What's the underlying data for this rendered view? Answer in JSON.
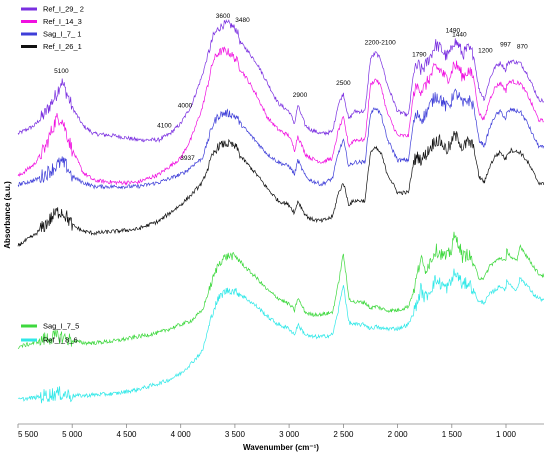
{
  "chart_data": {
    "type": "line",
    "title": "",
    "xlabel": "Wavenumber (cm⁻¹)",
    "ylabel": "Absorbance (a.u.)",
    "x_reversed": true,
    "xlim": [
      5500,
      650
    ],
    "x_ticks": [
      {
        "value": 5500,
        "label": "5 500"
      },
      {
        "value": 5000,
        "label": "5 000"
      },
      {
        "value": 4500,
        "label": "4 500"
      },
      {
        "value": 4000,
        "label": "4 000"
      },
      {
        "value": 3500,
        "label": "3 500"
      },
      {
        "value": 3000,
        "label": "3 000"
      },
      {
        "value": 2500,
        "label": "2 500"
      },
      {
        "value": 2000,
        "label": "2 000"
      },
      {
        "value": 1500,
        "label": "1 500"
      },
      {
        "value": 1000,
        "label": "1 000"
      }
    ],
    "grid": false,
    "legends": [
      {
        "placement": "top-left",
        "entries": [
          "Ref_I_29_ 2",
          "Ref_I_14_3",
          "Sag_I_7_ 1",
          "Ref_I_26_1"
        ]
      },
      {
        "placement": "bottom-left",
        "entries": [
          "Sag_I_7_5",
          "Ref_I_8_6"
        ]
      }
    ],
    "series": [
      {
        "name": "Ref_I_29_ 2",
        "color": "#7a2fe0",
        "x": [
          5500,
          5350,
          5250,
          5150,
          5100,
          5050,
          5000,
          4900,
          4800,
          4600,
          4400,
          4200,
          4100,
          4000,
          3900,
          3800,
          3700,
          3650,
          3600,
          3550,
          3480,
          3450,
          3400,
          3300,
          3200,
          3100,
          3000,
          2950,
          2920,
          2850,
          2800,
          2700,
          2600,
          2550,
          2500,
          2450,
          2400,
          2300,
          2250,
          2200,
          2150,
          2100,
          2000,
          1900,
          1850,
          1800,
          1790,
          1750,
          1700,
          1650,
          1600,
          1550,
          1500,
          1490,
          1440,
          1400,
          1350,
          1300,
          1250,
          1200,
          1150,
          1100,
          1050,
          1000,
          997,
          950,
          900,
          870,
          800,
          750,
          700,
          650
        ],
        "y": [
          0.705,
          0.725,
          0.755,
          0.8,
          0.835,
          0.805,
          0.77,
          0.725,
          0.705,
          0.7,
          0.69,
          0.69,
          0.705,
          0.73,
          0.775,
          0.85,
          0.945,
          0.965,
          0.975,
          0.975,
          0.96,
          0.93,
          0.915,
          0.88,
          0.83,
          0.78,
          0.76,
          0.73,
          0.775,
          0.725,
          0.715,
          0.705,
          0.71,
          0.775,
          0.805,
          0.74,
          0.76,
          0.76,
          0.89,
          0.905,
          0.885,
          0.83,
          0.76,
          0.75,
          0.86,
          0.875,
          0.86,
          0.87,
          0.895,
          0.925,
          0.915,
          0.895,
          0.91,
          0.935,
          0.925,
          0.9,
          0.915,
          0.9,
          0.815,
          0.79,
          0.84,
          0.87,
          0.88,
          0.86,
          0.875,
          0.885,
          0.88,
          0.88,
          0.85,
          0.82,
          0.79,
          0.785
        ]
      },
      {
        "name": "Ref_I_14_3",
        "color": "#f010e0",
        "x": [
          5500,
          5350,
          5250,
          5150,
          5100,
          5050,
          5000,
          4900,
          4800,
          4600,
          4400,
          4200,
          4100,
          4000,
          3900,
          3800,
          3700,
          3650,
          3600,
          3550,
          3480,
          3450,
          3400,
          3300,
          3200,
          3100,
          3000,
          2950,
          2920,
          2850,
          2800,
          2700,
          2600,
          2550,
          2500,
          2450,
          2400,
          2300,
          2250,
          2200,
          2150,
          2100,
          2000,
          1900,
          1850,
          1800,
          1790,
          1750,
          1700,
          1650,
          1600,
          1550,
          1500,
          1490,
          1440,
          1400,
          1350,
          1300,
          1250,
          1200,
          1150,
          1100,
          1050,
          1000,
          997,
          950,
          900,
          870,
          800,
          750,
          700,
          650
        ],
        "y": [
          0.6,
          0.63,
          0.67,
          0.74,
          0.745,
          0.705,
          0.665,
          0.61,
          0.59,
          0.585,
          0.585,
          0.605,
          0.625,
          0.645,
          0.695,
          0.77,
          0.885,
          0.905,
          0.91,
          0.905,
          0.885,
          0.865,
          0.845,
          0.8,
          0.745,
          0.715,
          0.7,
          0.665,
          0.7,
          0.655,
          0.645,
          0.635,
          0.645,
          0.71,
          0.745,
          0.675,
          0.69,
          0.69,
          0.825,
          0.84,
          0.82,
          0.76,
          0.7,
          0.7,
          0.81,
          0.825,
          0.81,
          0.82,
          0.845,
          0.87,
          0.86,
          0.84,
          0.855,
          0.875,
          0.87,
          0.845,
          0.86,
          0.845,
          0.755,
          0.74,
          0.79,
          0.82,
          0.83,
          0.81,
          0.825,
          0.835,
          0.83,
          0.83,
          0.8,
          0.77,
          0.74,
          0.735
        ]
      },
      {
        "name": "Sag_I_7_ 1",
        "color": "#3e3ed8",
        "x": [
          5500,
          5350,
          5250,
          5150,
          5100,
          5050,
          5000,
          4900,
          4800,
          4600,
          4400,
          4200,
          4100,
          4000,
          3937,
          3900,
          3800,
          3700,
          3650,
          3600,
          3550,
          3480,
          3450,
          3400,
          3300,
          3200,
          3100,
          3000,
          2950,
          2920,
          2850,
          2800,
          2700,
          2600,
          2550,
          2500,
          2450,
          2400,
          2300,
          2250,
          2200,
          2150,
          2100,
          2000,
          1900,
          1850,
          1800,
          1790,
          1750,
          1700,
          1650,
          1600,
          1550,
          1500,
          1490,
          1440,
          1400,
          1350,
          1300,
          1250,
          1200,
          1150,
          1100,
          1050,
          1000,
          997,
          950,
          900,
          870,
          800,
          750,
          700,
          650
        ],
        "y": [
          0.58,
          0.59,
          0.605,
          0.625,
          0.635,
          0.625,
          0.6,
          0.585,
          0.575,
          0.575,
          0.575,
          0.585,
          0.595,
          0.605,
          0.615,
          0.625,
          0.645,
          0.73,
          0.75,
          0.755,
          0.755,
          0.745,
          0.73,
          0.715,
          0.685,
          0.655,
          0.635,
          0.625,
          0.605,
          0.64,
          0.6,
          0.59,
          0.58,
          0.595,
          0.655,
          0.69,
          0.625,
          0.635,
          0.635,
          0.755,
          0.77,
          0.75,
          0.695,
          0.64,
          0.64,
          0.74,
          0.755,
          0.74,
          0.75,
          0.775,
          0.8,
          0.79,
          0.77,
          0.785,
          0.805,
          0.8,
          0.775,
          0.79,
          0.775,
          0.69,
          0.675,
          0.72,
          0.75,
          0.76,
          0.74,
          0.755,
          0.765,
          0.76,
          0.76,
          0.73,
          0.7,
          0.675,
          0.67
        ]
      },
      {
        "name": "Ref_I_26_1",
        "color": "#111111",
        "x": [
          5500,
          5350,
          5250,
          5150,
          5100,
          5050,
          5000,
          4900,
          4800,
          4600,
          4400,
          4200,
          4100,
          4000,
          3900,
          3800,
          3700,
          3650,
          3600,
          3550,
          3480,
          3450,
          3400,
          3300,
          3200,
          3100,
          3000,
          2950,
          2920,
          2850,
          2800,
          2700,
          2600,
          2550,
          2500,
          2450,
          2400,
          2300,
          2250,
          2200,
          2150,
          2100,
          2000,
          1900,
          1850,
          1800,
          1790,
          1750,
          1700,
          1650,
          1600,
          1550,
          1500,
          1490,
          1440,
          1400,
          1350,
          1300,
          1250,
          1200,
          1150,
          1100,
          1050,
          1000,
          997,
          950,
          900,
          870,
          800,
          750,
          700,
          650
        ],
        "y": [
          0.43,
          0.455,
          0.48,
          0.51,
          0.515,
          0.5,
          0.48,
          0.465,
          0.46,
          0.465,
          0.47,
          0.49,
          0.51,
          0.53,
          0.555,
          0.585,
          0.655,
          0.675,
          0.68,
          0.68,
          0.67,
          0.65,
          0.635,
          0.605,
          0.57,
          0.54,
          0.53,
          0.51,
          0.54,
          0.505,
          0.495,
          0.49,
          0.5,
          0.555,
          0.585,
          0.53,
          0.54,
          0.54,
          0.66,
          0.67,
          0.655,
          0.61,
          0.56,
          0.56,
          0.64,
          0.65,
          0.64,
          0.65,
          0.67,
          0.69,
          0.685,
          0.665,
          0.68,
          0.7,
          0.695,
          0.67,
          0.685,
          0.675,
          0.6,
          0.585,
          0.625,
          0.65,
          0.66,
          0.64,
          0.655,
          0.665,
          0.66,
          0.66,
          0.635,
          0.61,
          0.585,
          0.58
        ]
      },
      {
        "name": "Sag_I_7_5",
        "color": "#3ed83e",
        "x": [
          5500,
          5350,
          5250,
          5150,
          5100,
          5050,
          5000,
          4900,
          4800,
          4600,
          4400,
          4200,
          4100,
          4000,
          3900,
          3800,
          3700,
          3650,
          3600,
          3550,
          3480,
          3450,
          3400,
          3300,
          3200,
          3100,
          3000,
          2950,
          2920,
          2850,
          2800,
          2700,
          2600,
          2550,
          2500,
          2450,
          2400,
          2300,
          2250,
          2200,
          2150,
          2100,
          2000,
          1900,
          1850,
          1800,
          1790,
          1750,
          1700,
          1650,
          1600,
          1550,
          1500,
          1490,
          1440,
          1400,
          1350,
          1300,
          1250,
          1200,
          1150,
          1100,
          1050,
          1000,
          997,
          950,
          900,
          870,
          800,
          750,
          700,
          650
        ],
        "y": [
          0.18,
          0.19,
          0.2,
          0.205,
          0.205,
          0.2,
          0.195,
          0.19,
          0.19,
          0.195,
          0.205,
          0.215,
          0.225,
          0.235,
          0.245,
          0.27,
          0.35,
          0.385,
          0.4,
          0.405,
          0.4,
          0.39,
          0.375,
          0.35,
          0.32,
          0.3,
          0.285,
          0.27,
          0.3,
          0.265,
          0.26,
          0.26,
          0.265,
          0.33,
          0.41,
          0.3,
          0.29,
          0.29,
          0.275,
          0.28,
          0.275,
          0.27,
          0.27,
          0.28,
          0.32,
          0.38,
          0.4,
          0.37,
          0.39,
          0.42,
          0.41,
          0.4,
          0.42,
          0.45,
          0.44,
          0.4,
          0.41,
          0.385,
          0.35,
          0.35,
          0.38,
          0.39,
          0.4,
          0.39,
          0.42,
          0.4,
          0.39,
          0.43,
          0.4,
          0.38,
          0.36,
          0.355
        ]
      },
      {
        "name": "Ref_I_8_6",
        "color": "#30e8e8",
        "x": [
          5500,
          5350,
          5250,
          5150,
          5100,
          5050,
          5000,
          4900,
          4800,
          4600,
          4400,
          4200,
          4100,
          4000,
          3900,
          3800,
          3700,
          3650,
          3600,
          3550,
          3480,
          3450,
          3400,
          3300,
          3200,
          3100,
          3000,
          2950,
          2920,
          2850,
          2800,
          2700,
          2600,
          2550,
          2500,
          2450,
          2400,
          2300,
          2250,
          2200,
          2150,
          2100,
          2000,
          1900,
          1850,
          1800,
          1790,
          1750,
          1700,
          1650,
          1600,
          1550,
          1500,
          1490,
          1440,
          1400,
          1350,
          1300,
          1250,
          1200,
          1150,
          1100,
          1050,
          1000,
          997,
          950,
          900,
          870,
          800,
          750,
          700,
          650
        ],
        "y": [
          0.05,
          0.055,
          0.06,
          0.065,
          0.065,
          0.063,
          0.06,
          0.06,
          0.062,
          0.065,
          0.075,
          0.09,
          0.1,
          0.115,
          0.14,
          0.17,
          0.27,
          0.3,
          0.315,
          0.32,
          0.315,
          0.31,
          0.3,
          0.28,
          0.255,
          0.235,
          0.225,
          0.21,
          0.235,
          0.21,
          0.205,
          0.205,
          0.21,
          0.265,
          0.335,
          0.24,
          0.235,
          0.235,
          0.225,
          0.23,
          0.225,
          0.225,
          0.225,
          0.235,
          0.265,
          0.305,
          0.325,
          0.3,
          0.32,
          0.345,
          0.335,
          0.325,
          0.34,
          0.36,
          0.355,
          0.33,
          0.34,
          0.32,
          0.29,
          0.29,
          0.31,
          0.32,
          0.33,
          0.32,
          0.345,
          0.33,
          0.32,
          0.35,
          0.33,
          0.31,
          0.3,
          0.295
        ]
      }
    ],
    "annotations": [
      {
        "label": "5100",
        "x": 5100,
        "y": 0.855
      },
      {
        "label": "4100",
        "x": 4150,
        "y": 0.72
      },
      {
        "label": "4000",
        "x": 3960,
        "y": 0.77
      },
      {
        "label": "3600",
        "x": 3610,
        "y": 0.99
      },
      {
        "label": "3480",
        "x": 3430,
        "y": 0.98
      },
      {
        "label": "2900",
        "x": 2900,
        "y": 0.795
      },
      {
        "label": "2500",
        "x": 2500,
        "y": 0.825
      },
      {
        "label": "2200-2100",
        "x": 2160,
        "y": 0.925
      },
      {
        "label": "1790",
        "x": 1800,
        "y": 0.895
      },
      {
        "label": "1490",
        "x": 1490,
        "y": 0.955
      },
      {
        "label": "1440",
        "x": 1430,
        "y": 0.945
      },
      {
        "label": "1200",
        "x": 1190,
        "y": 0.905
      },
      {
        "label": "997",
        "x": 1005,
        "y": 0.92
      },
      {
        "label": "870",
        "x": 850,
        "y": 0.915
      },
      {
        "label": "3937",
        "x": 3937,
        "y": 0.64
      }
    ]
  }
}
